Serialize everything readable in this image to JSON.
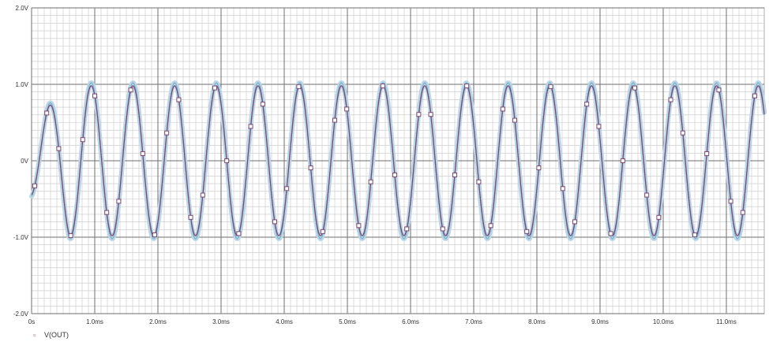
{
  "chart_data": {
    "type": "line",
    "title": "",
    "xlabel": "",
    "ylabel": "",
    "xlim": [
      0,
      11.6
    ],
    "ylim": [
      -2.0,
      2.0
    ],
    "x_unit": "ms",
    "y_tick_values": [
      2.0,
      1.0,
      0.0,
      -1.0,
      -2.0
    ],
    "y_tick_labels": [
      "2.0V",
      "1.0V",
      "0V",
      "-1.0V",
      "-2.0V"
    ],
    "x_tick_values": [
      0,
      1,
      2,
      3,
      4,
      5,
      6,
      7,
      8,
      9,
      10,
      11
    ],
    "x_tick_labels": [
      "0s",
      "1.0ms",
      "2.0ms",
      "3.0ms",
      "4.0ms",
      "5.0ms",
      "6.0ms",
      "7.0ms",
      "8.0ms",
      "9.0ms",
      "10.0ms",
      "11.0ms"
    ],
    "grid": true,
    "legend_position": "bottom-left",
    "legend_label": "V(OUT)",
    "series": [
      {
        "name": "",
        "style": "filled-band",
        "period_ms": 0.66,
        "amplitude_V": 1.02,
        "phase_offset_ms": 0.12,
        "x_range_ms": [
          0,
          11.6
        ]
      },
      {
        "name": "V(OUT)",
        "style": "line-with-markers",
        "period_ms": 0.66,
        "amplitude_V": 0.98,
        "phase_offset_ms": 0.12,
        "x_range_ms": [
          0,
          11.6
        ]
      }
    ]
  },
  "colors": {
    "background": "#ffffff",
    "major_grid": "#6f6f6f",
    "minor_grid": "#c6c6c6",
    "band": "#b9d6e6",
    "band_edge": "#6fa2c4",
    "trace": "#7b4b74",
    "marker": "#7b4b74",
    "tick_text": "#333333"
  }
}
